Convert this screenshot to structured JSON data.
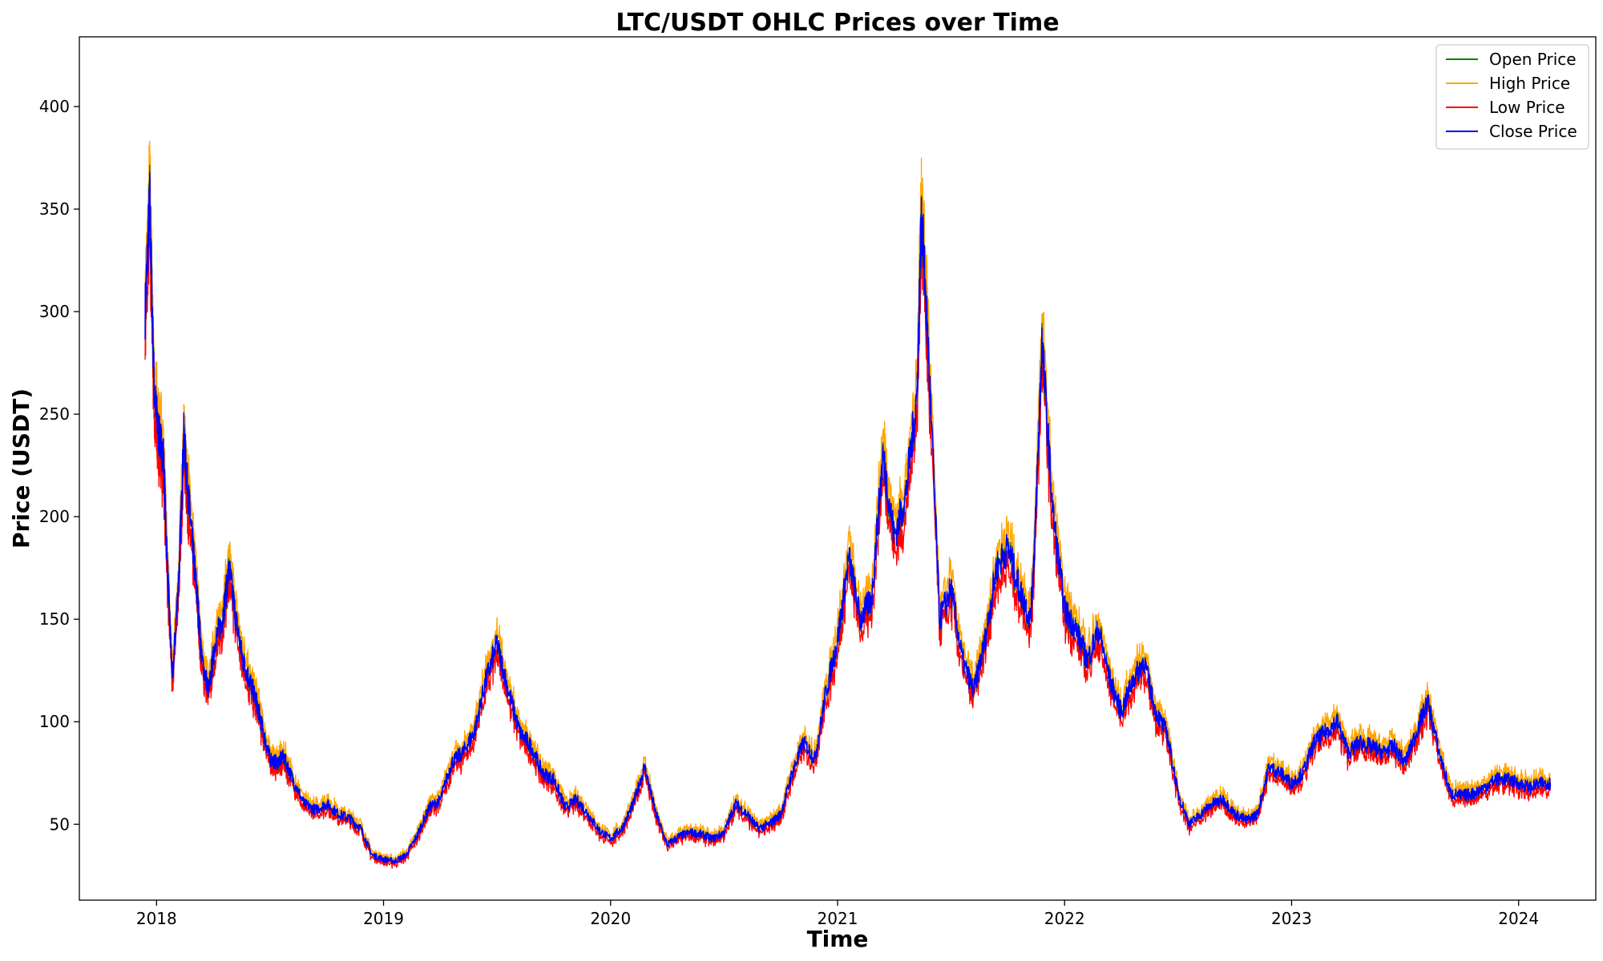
{
  "chart_data": {
    "type": "line",
    "title": "LTC/USDT OHLC Prices over Time",
    "xlabel": "Time",
    "ylabel": "Price (USDT)",
    "xlim": [
      2017.66,
      2024.34
    ],
    "ylim": [
      13,
      434
    ],
    "x_ticks": [
      {
        "value": 2018,
        "label": "2018"
      },
      {
        "value": 2019,
        "label": "2019"
      },
      {
        "value": 2020,
        "label": "2020"
      },
      {
        "value": 2021,
        "label": "2021"
      },
      {
        "value": 2022,
        "label": "2022"
      },
      {
        "value": 2023,
        "label": "2023"
      },
      {
        "value": 2024,
        "label": "2024"
      }
    ],
    "y_ticks": [
      50,
      100,
      150,
      200,
      250,
      300,
      350,
      400
    ],
    "grid": false,
    "legend_position": "top-right",
    "series": [
      {
        "name": "Open Price",
        "color": "#008000",
        "key": "open"
      },
      {
        "name": "High Price",
        "color": "#ffa500",
        "key": "high"
      },
      {
        "name": "Low Price",
        "color": "#ff0000",
        "key": "low"
      },
      {
        "name": "Close Price",
        "color": "#0000ff",
        "key": "close"
      }
    ],
    "x": [
      2017.95,
      2017.97,
      2017.99,
      2018.01,
      2018.03,
      2018.05,
      2018.07,
      2018.1,
      2018.12,
      2018.14,
      2018.16,
      2018.18,
      2018.2,
      2018.23,
      2018.26,
      2018.29,
      2018.32,
      2018.35,
      2018.38,
      2018.41,
      2018.44,
      2018.47,
      2018.5,
      2018.53,
      2018.56,
      2018.6,
      2018.65,
      2018.7,
      2018.75,
      2018.8,
      2018.85,
      2018.9,
      2018.95,
      2019.0,
      2019.05,
      2019.1,
      2019.15,
      2019.2,
      2019.25,
      2019.3,
      2019.35,
      2019.4,
      2019.45,
      2019.5,
      2019.55,
      2019.6,
      2019.65,
      2019.7,
      2019.75,
      2019.8,
      2019.85,
      2019.9,
      2019.95,
      2020.0,
      2020.05,
      2020.1,
      2020.15,
      2020.2,
      2020.25,
      2020.3,
      2020.35,
      2020.4,
      2020.45,
      2020.5,
      2020.55,
      2020.6,
      2020.65,
      2020.7,
      2020.75,
      2020.8,
      2020.85,
      2020.9,
      2020.95,
      2021.0,
      2021.05,
      2021.1,
      2021.15,
      2021.2,
      2021.25,
      2021.3,
      2021.35,
      2021.37,
      2021.4,
      2021.45,
      2021.5,
      2021.55,
      2021.6,
      2021.65,
      2021.7,
      2021.75,
      2021.8,
      2021.85,
      2021.87,
      2021.9,
      2021.95,
      2022.0,
      2022.05,
      2022.1,
      2022.15,
      2022.2,
      2022.25,
      2022.3,
      2022.35,
      2022.4,
      2022.45,
      2022.5,
      2022.55,
      2022.6,
      2022.65,
      2022.7,
      2022.75,
      2022.8,
      2022.85,
      2022.9,
      2022.95,
      2023.0,
      2023.05,
      2023.1,
      2023.15,
      2023.2,
      2023.25,
      2023.3,
      2023.35,
      2023.4,
      2023.45,
      2023.5,
      2023.55,
      2023.6,
      2023.65,
      2023.7,
      2023.75,
      2023.8,
      2023.85,
      2023.9,
      2023.95,
      2024.0,
      2024.05,
      2024.1,
      2024.14
    ],
    "close": [
      300,
      355,
      260,
      240,
      230,
      170,
      120,
      175,
      240,
      210,
      185,
      160,
      130,
      115,
      140,
      150,
      175,
      150,
      130,
      120,
      110,
      95,
      82,
      80,
      83,
      72,
      60,
      57,
      60,
      55,
      53,
      48,
      35,
      33,
      32,
      35,
      45,
      58,
      62,
      80,
      85,
      95,
      120,
      138,
      115,
      95,
      88,
      75,
      72,
      58,
      62,
      55,
      47,
      43,
      48,
      60,
      78,
      55,
      40,
      44,
      46,
      45,
      43,
      46,
      60,
      55,
      48,
      50,
      55,
      75,
      90,
      82,
      115,
      140,
      180,
      150,
      160,
      230,
      190,
      210,
      260,
      350,
      280,
      150,
      165,
      130,
      115,
      140,
      175,
      185,
      165,
      150,
      190,
      285,
      200,
      155,
      145,
      130,
      145,
      120,
      105,
      120,
      130,
      105,
      95,
      65,
      50,
      55,
      60,
      62,
      55,
      52,
      55,
      78,
      75,
      70,
      75,
      90,
      95,
      100,
      85,
      90,
      88,
      85,
      88,
      80,
      95,
      110,
      85,
      65,
      64,
      65,
      68,
      72,
      72,
      70,
      68,
      70,
      70
    ]
  }
}
